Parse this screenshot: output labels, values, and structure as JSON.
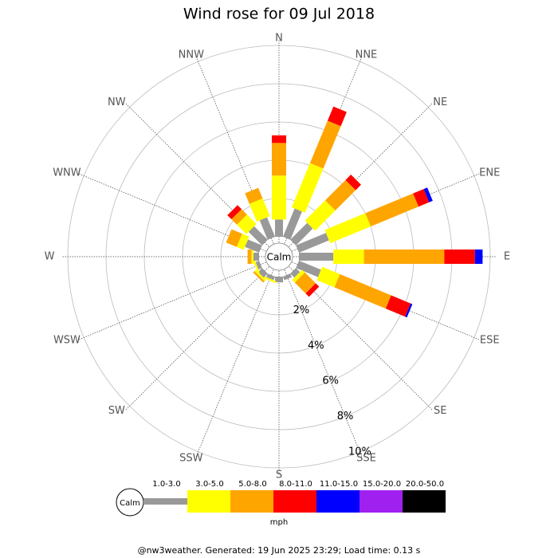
{
  "chart_data": {
    "type": "windrose",
    "title": "Wind rose for 09 Jul 2018",
    "directions": [
      "N",
      "NNE",
      "NE",
      "ENE",
      "E",
      "ESE",
      "SE",
      "SSE",
      "S",
      "SSW",
      "SW",
      "WSW",
      "W",
      "WNW",
      "NW",
      "NNW"
    ],
    "calm_label": "Calm",
    "rlim": [
      0,
      10
    ],
    "rticks": [
      {
        "value": 2,
        "label": "2%"
      },
      {
        "value": 4,
        "label": "4%"
      },
      {
        "value": 6,
        "label": "6%"
      },
      {
        "value": 8,
        "label": "8%"
      },
      {
        "value": 10,
        "label": "10%"
      }
    ],
    "series": [
      {
        "name": "1.0-3.0",
        "color": "#999999",
        "values": [
          0.9,
          1.6,
          1.25,
          1.7,
          1.8,
          1.25,
          0.3,
          0.2,
          0.3,
          0.2,
          0.3,
          0.2,
          0.3,
          0.8,
          1.0,
          1.1
        ]
      },
      {
        "name": "3.0-5.0",
        "color": "#ffff00",
        "values": [
          2.3,
          2.5,
          1.5,
          2.3,
          1.6,
          1.0,
          0.2,
          0,
          0,
          0.1,
          0.1,
          0.1,
          0.1,
          0.4,
          0.7,
          1.0
        ]
      },
      {
        "name": "5.0-8.0",
        "color": "#ffa500",
        "values": [
          1.7,
          2.4,
          1.5,
          2.7,
          4.2,
          2.9,
          0.8,
          0,
          0,
          0,
          0.1,
          0,
          0.2,
          0.6,
          0.4,
          0.6
        ]
      },
      {
        "name": "8.0-11.0",
        "color": "#ff0000",
        "values": [
          0.4,
          0.8,
          0.4,
          0.6,
          1.6,
          1.1,
          0.25,
          0,
          0,
          0,
          0,
          0,
          0,
          0,
          0.3,
          0
        ]
      },
      {
        "name": "11.0-15.0",
        "color": "#0000ff",
        "values": [
          0,
          0,
          0,
          0.2,
          0.4,
          0.1,
          0,
          0,
          0,
          0,
          0,
          0,
          0,
          0,
          0,
          0
        ]
      },
      {
        "name": "15.0-20.0",
        "color": "#a020f0",
        "values": [
          0,
          0,
          0,
          0,
          0,
          0,
          0,
          0,
          0,
          0,
          0,
          0,
          0,
          0,
          0,
          0
        ]
      },
      {
        "name": "20.0-50.0",
        "color": "#000000",
        "values": [
          0,
          0,
          0,
          0,
          0,
          0,
          0,
          0,
          0,
          0,
          0,
          0,
          0,
          0,
          0,
          0
        ]
      }
    ],
    "legend_unit": "mph",
    "footer": "@nw3weather. Generated: 19 Jun 2025 23:29; Load time: 0.13 s"
  }
}
